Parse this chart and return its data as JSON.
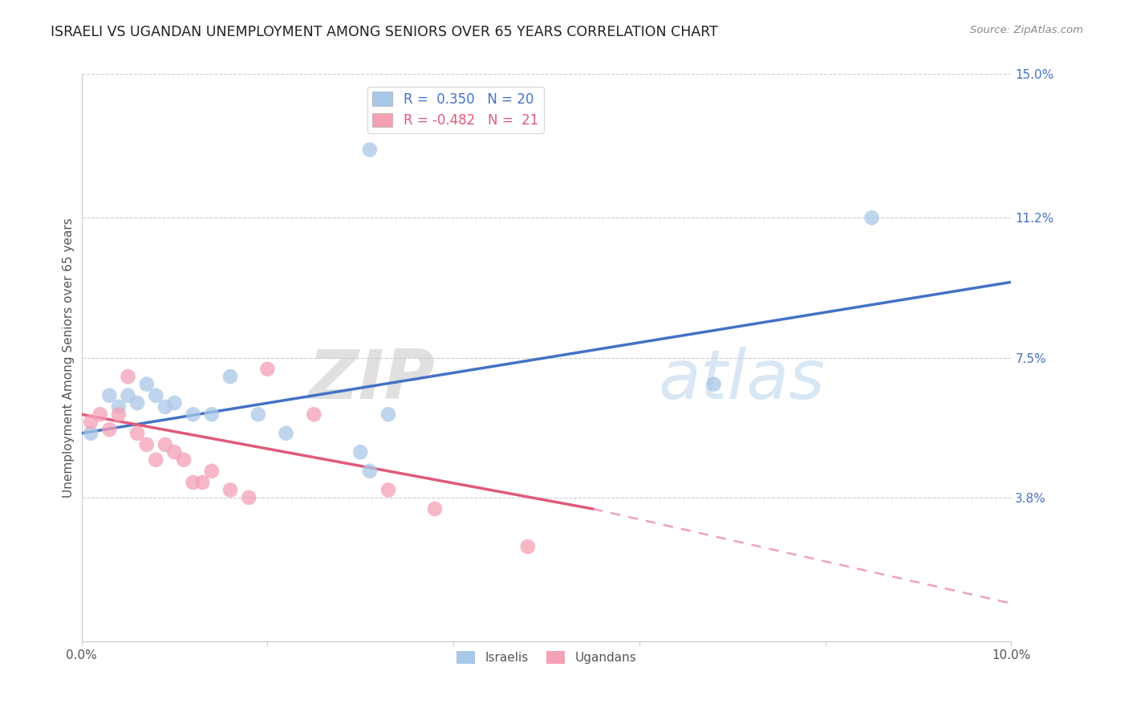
{
  "title": "ISRAELI VS UGANDAN UNEMPLOYMENT AMONG SENIORS OVER 65 YEARS CORRELATION CHART",
  "source": "Source: ZipAtlas.com",
  "ylabel": "Unemployment Among Seniors over 65 years",
  "xlim": [
    0.0,
    0.1
  ],
  "ylim": [
    0.0,
    0.15
  ],
  "ytick_labels_right": [
    "15.0%",
    "11.2%",
    "7.5%",
    "3.8%"
  ],
  "ytick_vals_right": [
    0.15,
    0.112,
    0.075,
    0.038
  ],
  "israeli_x": [
    0.001,
    0.003,
    0.004,
    0.005,
    0.006,
    0.007,
    0.008,
    0.009,
    0.01,
    0.012,
    0.014,
    0.016,
    0.019,
    0.022,
    0.03,
    0.031,
    0.033,
    0.085,
    0.031,
    0.068
  ],
  "israeli_y": [
    0.055,
    0.065,
    0.062,
    0.065,
    0.063,
    0.068,
    0.065,
    0.062,
    0.063,
    0.06,
    0.06,
    0.07,
    0.06,
    0.055,
    0.05,
    0.13,
    0.06,
    0.112,
    0.045,
    0.068
  ],
  "ugandan_x": [
    0.001,
    0.002,
    0.003,
    0.004,
    0.005,
    0.006,
    0.007,
    0.008,
    0.009,
    0.01,
    0.011,
    0.012,
    0.013,
    0.014,
    0.016,
    0.018,
    0.02,
    0.025,
    0.033,
    0.038,
    0.048
  ],
  "ugandan_y": [
    0.058,
    0.06,
    0.056,
    0.06,
    0.07,
    0.055,
    0.052,
    0.048,
    0.052,
    0.05,
    0.048,
    0.042,
    0.042,
    0.045,
    0.04,
    0.038,
    0.072,
    0.06,
    0.04,
    0.035,
    0.025
  ],
  "israeli_color": "#a8c8e8",
  "ugandan_color": "#f4a0b5",
  "trendline_israeli_color": "#4472c4",
  "trendline_ugandan_color": "#e05a7a",
  "trendline_isr_x0": 0.0,
  "trendline_isr_y0": 0.055,
  "trendline_isr_x1": 0.1,
  "trendline_isr_y1": 0.095,
  "trendline_ugn_x0": 0.0,
  "trendline_ugn_y0": 0.06,
  "trendline_ugn_x1": 0.055,
  "trendline_ugn_y1": 0.035,
  "trendline_ugn_dash_x1": 0.1,
  "trendline_ugn_dash_y1": 0.01,
  "background_color": "#ffffff",
  "grid_color": "#cccccc",
  "legend1_label": "R =  0.350   N = 20",
  "legend2_label": "R = -0.482   N =  21",
  "leg1_color_text": "#4472c4",
  "leg2_color_text": "#e05a7a"
}
